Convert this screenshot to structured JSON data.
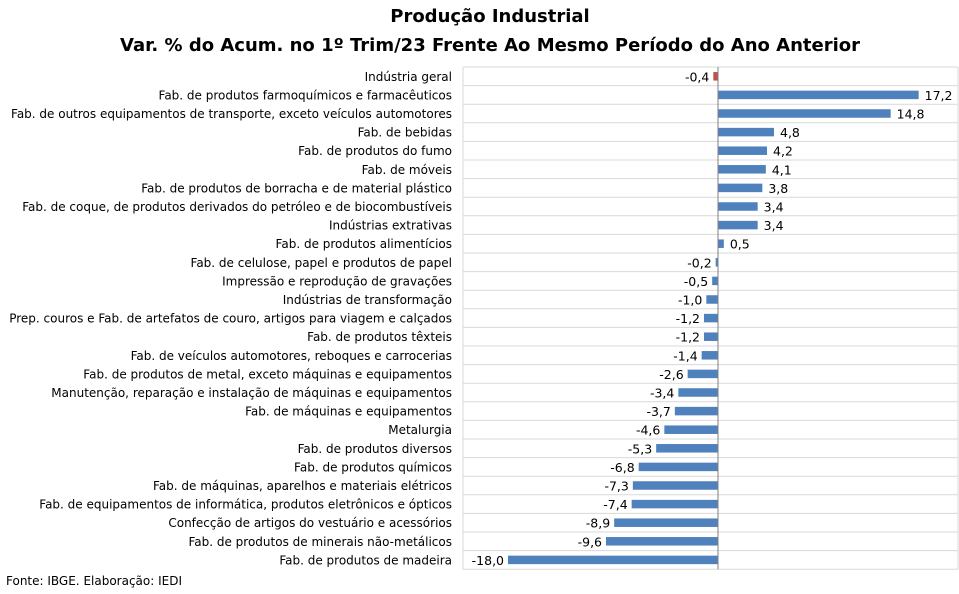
{
  "chart_data": {
    "type": "bar",
    "orientation": "horizontal",
    "title": "Produção Industrial",
    "subtitle": "Var. % do Acum. no 1º Trim/23 Frente Ao Mesmo Período do Ano Anterior",
    "xlim": [
      -18.0,
      17.2
    ],
    "grid": "horizontal",
    "colors": {
      "bar": "#4f81bd",
      "highlight": "#c0504d",
      "grid": "#d9d9d9"
    },
    "categories": [
      "Indústria geral",
      "Fab. de produtos farmoquímicos e farmacêuticos",
      "Fab. de outros equipamentos de transporte, exceto veículos automotores",
      "Fab. de bebidas",
      "Fab. de produtos do fumo",
      "Fab. de móveis",
      "Fab. de produtos de borracha e de material plástico",
      "Fab. de coque, de produtos derivados do petróleo e de biocombustíveis",
      "Indústrias extrativas",
      "Fab. de produtos alimentícios",
      "Fab. de celulose, papel e produtos de papel",
      "Impressão e reprodução de gravações",
      "Indústrias de transformação",
      "Prep. couros e Fab. de artefatos de couro, artigos para viagem e calçados",
      "Fab. de produtos têxteis",
      "Fab. de veículos automotores, reboques e carrocerias",
      "Fab. de produtos de metal, exceto máquinas e equipamentos",
      "Manutenção, reparação e instalação de máquinas e equipamentos",
      "Fab. de máquinas e equipamentos",
      "Metalurgia",
      "Fab. de produtos diversos",
      "Fab. de produtos químicos",
      "Fab. de máquinas, aparelhos e materiais elétricos",
      "Fab. de equipamentos de informática, produtos eletrônicos e ópticos",
      "Confecção de artigos do vestuário e acessórios",
      "Fab. de produtos de minerais não-metálicos",
      "Fab. de produtos de madeira"
    ],
    "values": [
      -0.4,
      17.2,
      14.8,
      4.8,
      4.2,
      4.1,
      3.8,
      3.4,
      3.4,
      0.5,
      -0.2,
      -0.5,
      -1.0,
      -1.2,
      -1.2,
      -1.4,
      -2.6,
      -3.4,
      -3.7,
      -4.6,
      -5.3,
      -6.8,
      -7.3,
      -7.4,
      -8.9,
      -9.6,
      -18.0
    ],
    "value_labels": [
      "-0,4",
      "17,2",
      "14,8",
      "4,8",
      "4,2",
      "4,1",
      "3,8",
      "3,4",
      "3,4",
      "0,5",
      "-0,2",
      "-0,5",
      "-1,0",
      "-1,2",
      "-1,2",
      "-1,4",
      "-2,6",
      "-3,4",
      "-3,7",
      "-4,6",
      "-5,3",
      "-6,8",
      "-7,3",
      "-7,4",
      "-8,9",
      "-9,6",
      "-18,0"
    ],
    "highlighted_category": "Indústria geral"
  },
  "footer": {
    "source": "Fonte: IBGE. Elaboração: IEDI"
  }
}
